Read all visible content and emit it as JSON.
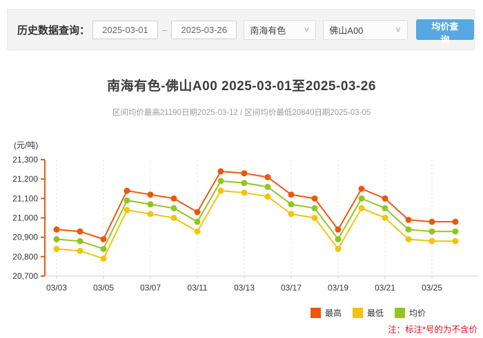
{
  "query_bar": {
    "label": "历史数据查询：",
    "date_from": "2025-03-01",
    "date_separator": "–",
    "date_to": "2025-03-26",
    "market_select": {
      "value": "南海有色"
    },
    "product_select": {
      "value": "佛山A00"
    },
    "chevron_glyph": "∨",
    "search_button": "均价查询"
  },
  "header": {
    "title": "南海有色-佛山A00 2025-03-01至2025-03-26",
    "subtitle": "区间均价最高21190日期2025-03-12 / 区间均价最低20840日期2025-03-05"
  },
  "chart_data": {
    "type": "line",
    "title": "南海有色-佛山A00 2025-03-01至2025-03-26",
    "unit_label": "(元/吨)",
    "categories": [
      "03/03",
      "03/04",
      "03/05",
      "03/06",
      "03/07",
      "03/10",
      "03/11",
      "03/12",
      "03/13",
      "03/14",
      "03/17",
      "03/18",
      "03/19",
      "03/20",
      "03/21",
      "03/24",
      "03/25",
      "03/26"
    ],
    "x_tick_labels": [
      "03/03",
      "03/05",
      "03/07",
      "03/11",
      "03/13",
      "03/17",
      "03/19",
      "03/21",
      "03/25"
    ],
    "ylim": [
      20700,
      21300
    ],
    "y_tick_step": 100,
    "y_tick_labels": [
      "21,300",
      "21,200",
      "21,100",
      "21,000",
      "20,900",
      "20,800",
      "20,700"
    ],
    "axis_color": "#ed560d",
    "grid": "vertical-dashed",
    "legend_position": "bottom-right",
    "series": [
      {
        "name": "最高",
        "color": "#ed560d",
        "values": [
          20940,
          20930,
          20890,
          21140,
          21120,
          21100,
          21030,
          21240,
          21230,
          21210,
          21120,
          21100,
          20940,
          21150,
          21100,
          20990,
          20980,
          20980
        ]
      },
      {
        "name": "最低",
        "color": "#f2c40d",
        "values": [
          20840,
          20830,
          20790,
          21040,
          21020,
          21000,
          20930,
          21140,
          21130,
          21110,
          21020,
          21000,
          20840,
          21050,
          21000,
          20890,
          20880,
          20880
        ]
      },
      {
        "name": "均价",
        "color": "#92c520",
        "values": [
          20890,
          20880,
          20840,
          21090,
          21070,
          21050,
          20980,
          21190,
          21180,
          21160,
          21070,
          21050,
          20890,
          21100,
          21050,
          20940,
          20930,
          20930
        ]
      }
    ],
    "interval_max_avg": 21190,
    "interval_max_avg_date": "2025-03-12",
    "interval_min_avg": 20840,
    "interval_min_avg_date": "2025-03-05"
  },
  "footnote": {
    "text": "注：标注*号的为不含价"
  }
}
